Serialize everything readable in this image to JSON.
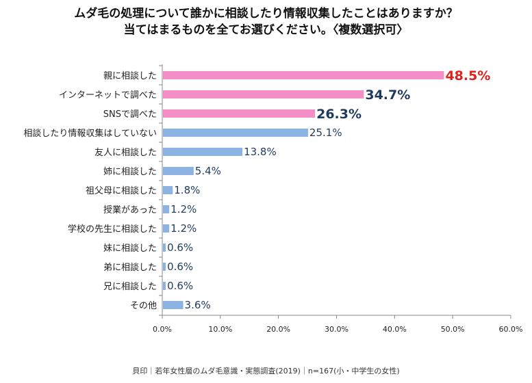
{
  "title_line1": "ムダ毛の処理について誰かに相談したり情報収集したことはありますか？",
  "title_line2": "当てはまるものを全てお選びください。〈複数選択可〉",
  "source": "貝印｜若年女性層のムダ毛意識・実態調査(2019)｜n=167(小・中学生の女性)",
  "colors": {
    "highlight_bar": "#f38ec7",
    "normal_bar": "#8db3e2",
    "top_label": "#e0201c",
    "highlight_label": "#1f3a5f",
    "normal_label": "#1f3a5f",
    "axis": "#888888",
    "text": "#222222"
  },
  "chart_data": {
    "type": "bar",
    "orientation": "horizontal",
    "categories": [
      "親に相談した",
      "インターネットで調べた",
      "SNSで調べた",
      "相談したり情報収集はしていない",
      "友人に相談した",
      "姉に相談した",
      "祖父母に相談した",
      "授業があった",
      "学校の先生に相談した",
      "妹に相談した",
      "弟に相談した",
      "兄に相談した",
      "その他"
    ],
    "values": [
      48.5,
      34.7,
      26.3,
      25.1,
      13.8,
      5.4,
      1.8,
      1.2,
      1.2,
      0.6,
      0.6,
      0.6,
      3.6
    ],
    "value_labels": [
      "48.5%",
      "34.7%",
      "26.3%",
      "25.1%",
      "13.8%",
      "5.4%",
      "1.8%",
      "1.2%",
      "1.2%",
      "0.6%",
      "0.6%",
      "0.6%",
      "3.6%"
    ],
    "highlighted_count": 3,
    "xlim": [
      0,
      60
    ],
    "xticks": [
      "0.0%",
      "10.0%",
      "20.0%",
      "30.0%",
      "40.0%",
      "50.0%",
      "60.0%"
    ],
    "grid": false
  }
}
